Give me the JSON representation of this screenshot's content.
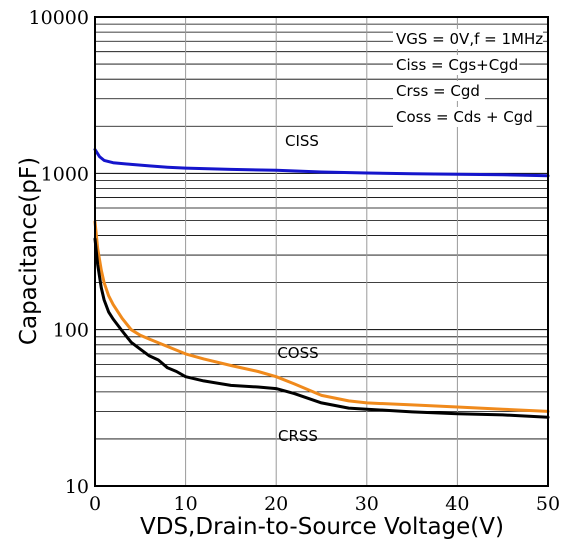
{
  "chart_data": {
    "type": "line",
    "xlabel": "VDS,Drain-to-Source Voltage(V)",
    "ylabel": "Capacitance(pF)",
    "xlim": [
      0,
      50
    ],
    "ylim": [
      10,
      10000
    ],
    "yscale": "log",
    "grid": true,
    "x_ticks": [
      0,
      10,
      20,
      30,
      40,
      50
    ],
    "x_tick_labels": [
      "0",
      "10",
      "20",
      "30",
      "40",
      "50"
    ],
    "y_ticks": [
      10,
      100,
      1000,
      10000
    ],
    "y_tick_labels": [
      "10",
      "100",
      "1000",
      "10000"
    ],
    "legend": [
      "VGS  = 0V,f = 1MHz",
      "Ciss = Cgs+Cgd",
      "Crss = Cgd",
      "Coss = Cds + Cgd"
    ],
    "series": [
      {
        "name": "CISS",
        "color": "#1515cc",
        "x": [
          0,
          0.5,
          1,
          2,
          4,
          6,
          8,
          10,
          15,
          20,
          25,
          30,
          35,
          40,
          45,
          50
        ],
        "y": [
          1420,
          1280,
          1210,
          1170,
          1140,
          1115,
          1095,
          1080,
          1060,
          1045,
          1020,
          1005,
          995,
          988,
          980,
          965
        ]
      },
      {
        "name": "COSS",
        "color": "#f08a1c",
        "x": [
          0,
          0.3,
          0.7,
          1,
          1.5,
          2,
          3,
          4,
          5,
          6,
          8,
          10,
          12,
          15,
          18,
          20,
          22,
          25,
          28,
          30,
          35,
          40,
          45,
          50
        ],
        "y": [
          490,
          330,
          240,
          200,
          165,
          145,
          118,
          100,
          92,
          87,
          78,
          70,
          65,
          59,
          54,
          50,
          45,
          38,
          35,
          34,
          33,
          32,
          31,
          30
        ]
      },
      {
        "name": "CRSS",
        "color": "#000000",
        "x": [
          0,
          0.3,
          0.7,
          1,
          1.5,
          2,
          3,
          4,
          5,
          6,
          7,
          8,
          9,
          10,
          12,
          15,
          18,
          20,
          22,
          25,
          28,
          30,
          35,
          40,
          45,
          50
        ],
        "y": [
          380,
          260,
          185,
          155,
          130,
          117,
          98,
          83,
          75,
          68,
          64,
          57,
          54,
          50,
          47,
          44,
          43,
          42,
          39,
          34,
          31.5,
          31,
          29.8,
          29,
          28.5,
          27.5
        ]
      }
    ]
  }
}
